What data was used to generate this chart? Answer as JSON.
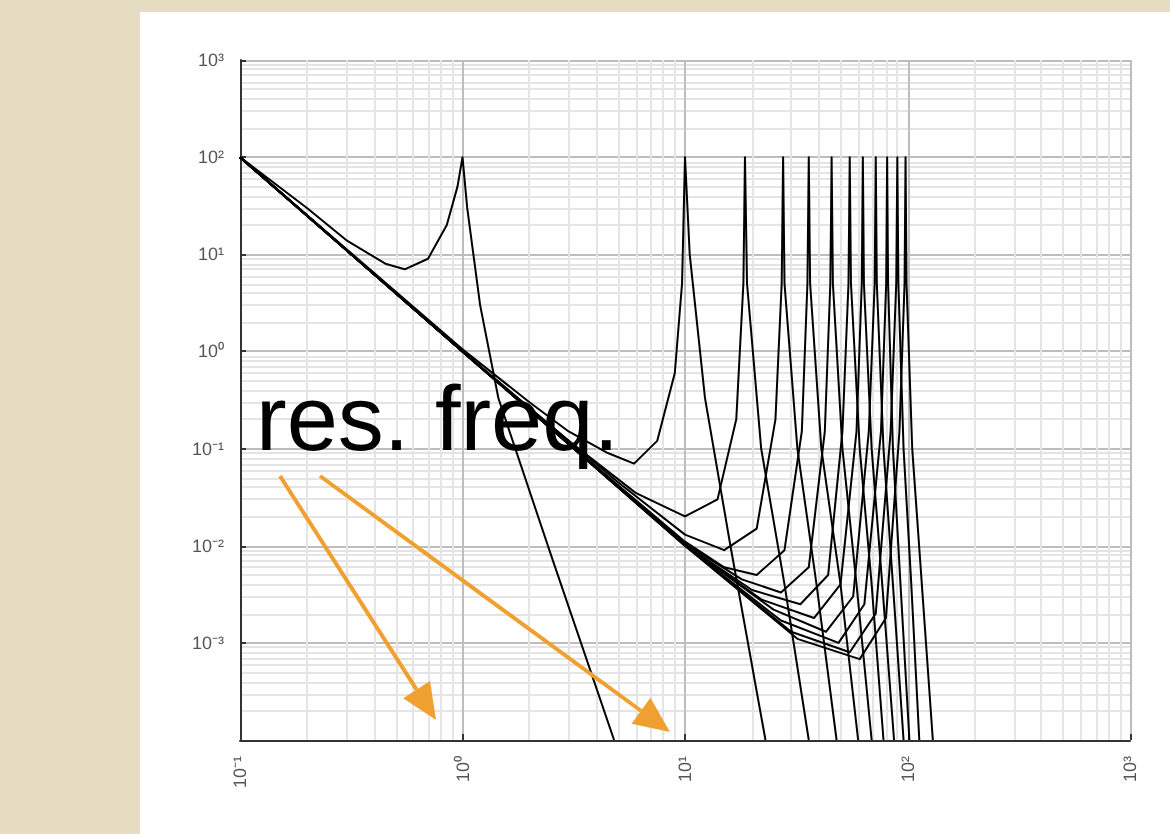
{
  "chart_data": {
    "type": "line",
    "log": "xy",
    "grid": true,
    "marker": "none",
    "line_style": "solid",
    "xlim": [
      0.1,
      1000
    ],
    "ylim": [
      0.0001,
      1000
    ],
    "xticks": [
      {
        "value": 0.1,
        "label": "10⁻¹"
      },
      {
        "value": 1,
        "label": "10⁰"
      },
      {
        "value": 10,
        "label": "10¹"
      },
      {
        "value": 100,
        "label": "10²"
      },
      {
        "value": 1000,
        "label": "10³"
      }
    ],
    "yticks": [
      {
        "value": 0.0001,
        "label": null
      },
      {
        "value": 0.001,
        "label": "10⁻³"
      },
      {
        "value": 0.01,
        "label": "10⁻²"
      },
      {
        "value": 0.1,
        "label": "10⁻¹"
      },
      {
        "value": 1,
        "label": "10⁰"
      },
      {
        "value": 10,
        "label": "10¹"
      },
      {
        "value": 100,
        "label": "10²"
      },
      {
        "value": 1000,
        "label": "10³"
      }
    ],
    "annotations": [
      "res. freq."
    ],
    "series": [
      {
        "color": "#000000",
        "x": [
          0.1,
          0.2,
          0.3,
          0.45,
          0.55,
          0.7,
          0.85,
          0.95,
          1,
          1.05,
          1.2,
          1.45,
          2.5,
          4.8
        ],
        "values": [
          100,
          30,
          14,
          8,
          7,
          9,
          20,
          50,
          100,
          30,
          3,
          0.33,
          0.008,
          0.0001
        ]
      },
      {
        "color": "#000000",
        "x": [
          0.1,
          1,
          2,
          3,
          4.5,
          5.9,
          7.5,
          9,
          9.7,
          10,
          10.5,
          12.3,
          16,
          23
        ],
        "values": [
          100,
          1.05,
          0.3,
          0.15,
          0.09,
          0.07,
          0.12,
          0.6,
          5,
          100,
          10,
          0.33,
          0.01,
          0.0001
        ]
      },
      {
        "color": "#000000",
        "x": [
          0.1,
          1,
          3,
          6,
          10,
          14,
          17,
          18.3,
          18.6,
          19,
          22,
          28,
          36
        ],
        "values": [
          100,
          1,
          0.12,
          0.035,
          0.02,
          0.03,
          0.2,
          5,
          100,
          5,
          0.1,
          0.004,
          0.0001
        ]
      },
      {
        "color": "#000000",
        "x": [
          0.1,
          1,
          5,
          10,
          15,
          21,
          25.5,
          27.2,
          27.6,
          28,
          32,
          39,
          48
        ],
        "values": [
          100,
          1,
          0.045,
          0.013,
          0.009,
          0.015,
          0.2,
          5,
          100,
          5,
          0.1,
          0.004,
          0.0001
        ]
      },
      {
        "color": "#000000",
        "x": [
          0.1,
          1,
          5,
          10,
          15,
          21,
          28,
          33.5,
          35.5,
          36,
          36.5,
          41,
          50,
          60
        ],
        "values": [
          100,
          1,
          0.042,
          0.011,
          0.006,
          0.005,
          0.009,
          0.15,
          5,
          100,
          5,
          0.1,
          0.004,
          0.0001
        ]
      },
      {
        "color": "#000000",
        "x": [
          0.1,
          1,
          10,
          18,
          27,
          36,
          42.5,
          45,
          45.6,
          46.2,
          51,
          59,
          69
        ],
        "values": [
          100,
          1,
          0.0105,
          0.0045,
          0.0033,
          0.006,
          0.15,
          5,
          100,
          5,
          0.1,
          0.004,
          0.0001
        ]
      },
      {
        "color": "#000000",
        "x": [
          0.1,
          1,
          10,
          20,
          33,
          44,
          51,
          54.3,
          55,
          55.7,
          61,
          69,
          78
        ],
        "values": [
          100,
          1,
          0.0102,
          0.0035,
          0.0025,
          0.005,
          0.15,
          5,
          100,
          5,
          0.1,
          0.004,
          0.0001
        ]
      },
      {
        "color": "#000000",
        "x": [
          0.1,
          1,
          10,
          22,
          38,
          50,
          59,
          62.3,
          63,
          63.7,
          69,
          77,
          87
        ],
        "values": [
          100,
          1,
          0.0101,
          0.0028,
          0.0018,
          0.004,
          0.15,
          5,
          100,
          5,
          0.1,
          0.004,
          0.0001
        ]
      },
      {
        "color": "#000000",
        "x": [
          0.1,
          1,
          10,
          25,
          43,
          57,
          67,
          71.2,
          72,
          72.8,
          78,
          86,
          96
        ],
        "values": [
          100,
          1,
          0.0101,
          0.0022,
          0.0013,
          0.003,
          0.15,
          5,
          100,
          5,
          0.1,
          0.004,
          0.0001
        ]
      },
      {
        "color": "#000000",
        "x": [
          0.1,
          1,
          10,
          27,
          49,
          64,
          76,
          80.2,
          81,
          81.8,
          86,
          93,
          102
        ],
        "values": [
          100,
          1,
          0.01,
          0.0017,
          0.001,
          0.0025,
          0.15,
          5,
          100,
          5,
          0.1,
          0.004,
          0.0001
        ]
      },
      {
        "color": "#000000",
        "x": [
          0.1,
          1,
          10,
          30,
          55,
          72,
          84,
          89,
          90,
          91,
          96,
          104,
          113
        ],
        "values": [
          100,
          1,
          0.01,
          0.0013,
          0.0008,
          0.002,
          0.15,
          5,
          100,
          5,
          0.1,
          0.004,
          0.0001
        ]
      },
      {
        "color": "#000000",
        "x": [
          0.1,
          1,
          10,
          32,
          61,
          80,
          92,
          97,
          98,
          99,
          105,
          116,
          130
        ],
        "values": [
          100,
          1,
          0.01,
          0.0011,
          0.00068,
          0.0018,
          0.15,
          5,
          100,
          5,
          0.1,
          0.004,
          0.0001
        ]
      }
    ]
  }
}
